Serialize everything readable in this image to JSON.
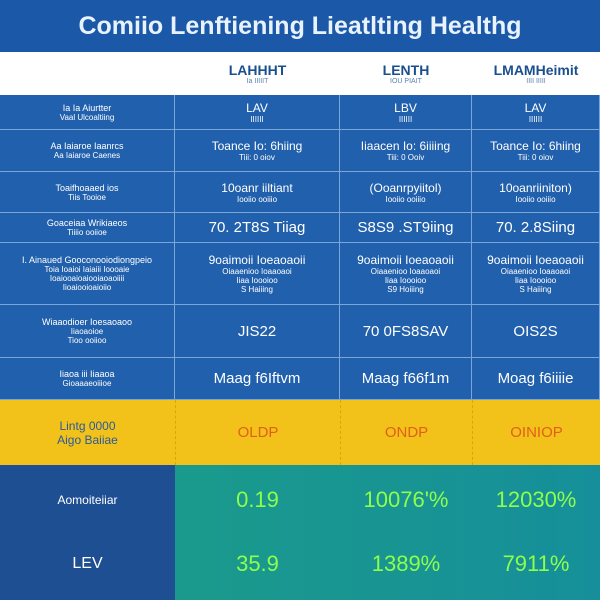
{
  "header": {
    "title": "Comiio Lenftiening Lieatlting Healthg"
  },
  "columns": [
    {
      "title": "LAHHHT",
      "subtitle": "Ia IIIIIT"
    },
    {
      "title": "LENTH",
      "subtitle": "IOU PIAIT"
    },
    {
      "title": "LMAMHeimit",
      "subtitle": "IIII IIIII"
    }
  ],
  "rows": [
    {
      "label": [
        "Ia Ia Aiurtter",
        "Vaal Ulcoaltiing"
      ],
      "cells": [
        [
          "LAV",
          "IIIIII"
        ],
        [
          "LBV",
          "IIIIII"
        ],
        [
          "LAV",
          "IIIIII"
        ]
      ]
    },
    {
      "label": [
        "Aa Iaiaroe Iaanrcs",
        "Aa Iaiaroe Caenes"
      ],
      "cells": [
        [
          "Toance Io: 6hiing",
          "Tiii: 0 oiov"
        ],
        [
          "Iiaacen Io: 6iiiing",
          "Tiii: 0 Ooiv"
        ],
        [
          "Toance Io: 6hiing",
          "Tiii: 0 oiov"
        ]
      ]
    },
    {
      "label": [
        "Toaifhoaaed ios",
        "Tiis Tooioe"
      ],
      "cells": [
        [
          "10oanr iiltiant",
          "Iooiio ooiiio"
        ],
        [
          "(Ooanrpyiitol)",
          "Iooiio ooiiio"
        ],
        [
          "10oanriiniton)",
          "Iooiio ooiiio"
        ]
      ]
    },
    {
      "label": [
        "Goaceiaa Wrikiaeos",
        "Tiiiio ooiioe"
      ],
      "cells": [
        [
          "70. 2T8S Tiiag"
        ],
        [
          "S8S9 .ST9iing"
        ],
        [
          "70. 2.8Siing"
        ]
      ]
    },
    {
      "label": [
        "I. Ainaued Gooconooiodiongpeio",
        "Toia Ioaioi Iaiaiii Ioooaie",
        "Ioaiooaioaiooiaoaoiiii",
        "Iioaiooioaioiio"
      ],
      "cells": [
        [
          "9oaimoii Ioeaoaoii",
          "Oiaaenioo Ioaaoaoi",
          "Iiaa Ioooioo",
          "S Haiiing"
        ],
        [
          "9oaimoii Ioeaoaoii",
          "Oiaaenioo Ioaaoaoi",
          "Iiaa Ioooioo",
          "S9 Hoiiing"
        ],
        [
          "9oaimoii Ioeaoaoii",
          "Oiaaenioo Ioaaoaoi",
          "Iiaa Ioooioo",
          "S Haiiing"
        ]
      ]
    },
    {
      "label": [
        "Wiaaodioer Ioesaoaoo",
        "Iiaoaoioe",
        "Tioo ooiioo"
      ],
      "cells": [
        [
          "JIS22"
        ],
        [
          "70 0FS8SAV"
        ],
        [
          "OIS2S"
        ]
      ]
    },
    {
      "label": [
        "Iiaoa iii Iiaaoa",
        "Gioaaaeoiiioe"
      ],
      "cells": [
        [
          "Maag f6Iftvm"
        ],
        [
          "Maag f66f1m"
        ],
        [
          "Moag f6iiiie"
        ]
      ]
    }
  ],
  "highlight": {
    "label": [
      "Lintg 0000",
      "Aigo Baiiae"
    ],
    "cells": [
      "OLDP",
      "ONDP",
      "OINIOP"
    ]
  },
  "results": [
    {
      "label": "Aomoiteiiar",
      "cells": [
        "0.19",
        "10076'%",
        "12030%"
      ]
    },
    {
      "label": "LEV",
      "cells": [
        "35.9",
        "1389%",
        "7911%"
      ]
    }
  ]
}
